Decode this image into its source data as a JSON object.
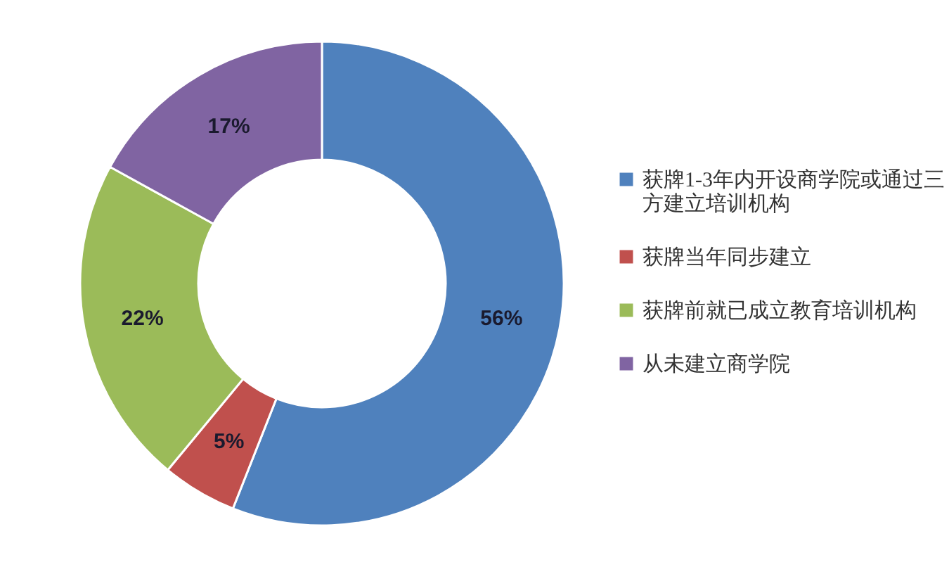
{
  "chart_data": {
    "type": "donut",
    "categories": [
      "获牌1-3年内开设商学院或通过三方建立培训机构",
      "获牌当年同步建立",
      "获牌前就已成立教育培训机构",
      "从未建立商学院"
    ],
    "values": [
      56,
      5,
      22,
      17
    ],
    "colors": [
      "#4f81bd",
      "#c0504d",
      "#9bbb59",
      "#8064a2"
    ],
    "value_labels": [
      "56%",
      "5%",
      "22%",
      "17%"
    ],
    "legend": "right"
  }
}
